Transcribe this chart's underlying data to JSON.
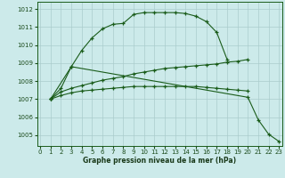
{
  "title": "Graphe pression niveau de la mer (hPa)",
  "bg_color": "#cceaea",
  "grid_color": "#aacccc",
  "line_color": "#1a5c1a",
  "ylim": [
    1004.4,
    1012.4
  ],
  "xlim": [
    -0.3,
    23.3
  ],
  "yticks": [
    1005,
    1006,
    1007,
    1008,
    1009,
    1010,
    1011,
    1012
  ],
  "xticks": [
    0,
    1,
    2,
    3,
    4,
    5,
    6,
    7,
    8,
    9,
    10,
    11,
    12,
    13,
    14,
    15,
    16,
    17,
    18,
    19,
    20,
    21,
    22,
    23
  ],
  "line1_x": [
    1,
    2,
    3,
    4,
    5,
    6,
    7,
    8,
    9,
    10,
    11,
    12,
    13,
    14,
    15,
    16,
    17,
    18
  ],
  "line1_y": [
    1007.0,
    1007.6,
    1008.8,
    1009.7,
    1010.4,
    1010.9,
    1011.15,
    1011.2,
    1011.7,
    1011.8,
    1011.8,
    1011.8,
    1011.8,
    1011.75,
    1011.6,
    1011.3,
    1010.7,
    1009.2
  ],
  "line2_x": [
    1,
    3,
    20,
    21,
    22,
    23
  ],
  "line2_y": [
    1007.0,
    1008.8,
    1007.1,
    1005.85,
    1005.05,
    1004.65
  ],
  "line3_x": [
    1,
    2,
    3,
    4,
    5,
    6,
    7,
    8,
    9,
    10,
    11,
    12,
    13,
    14,
    15,
    16,
    17,
    18,
    19,
    20
  ],
  "line3_y": [
    1007.0,
    1007.4,
    1007.6,
    1007.75,
    1007.9,
    1008.05,
    1008.15,
    1008.25,
    1008.4,
    1008.5,
    1008.6,
    1008.7,
    1008.75,
    1008.8,
    1008.85,
    1008.9,
    1008.95,
    1009.05,
    1009.1,
    1009.2
  ],
  "line4_x": [
    1,
    2,
    3,
    4,
    5,
    6,
    7,
    8,
    9,
    10,
    11,
    12,
    13,
    14,
    15,
    16,
    17,
    18,
    19,
    20
  ],
  "line4_y": [
    1007.0,
    1007.2,
    1007.35,
    1007.45,
    1007.5,
    1007.55,
    1007.6,
    1007.65,
    1007.7,
    1007.7,
    1007.7,
    1007.7,
    1007.7,
    1007.7,
    1007.7,
    1007.65,
    1007.6,
    1007.55,
    1007.5,
    1007.45
  ]
}
